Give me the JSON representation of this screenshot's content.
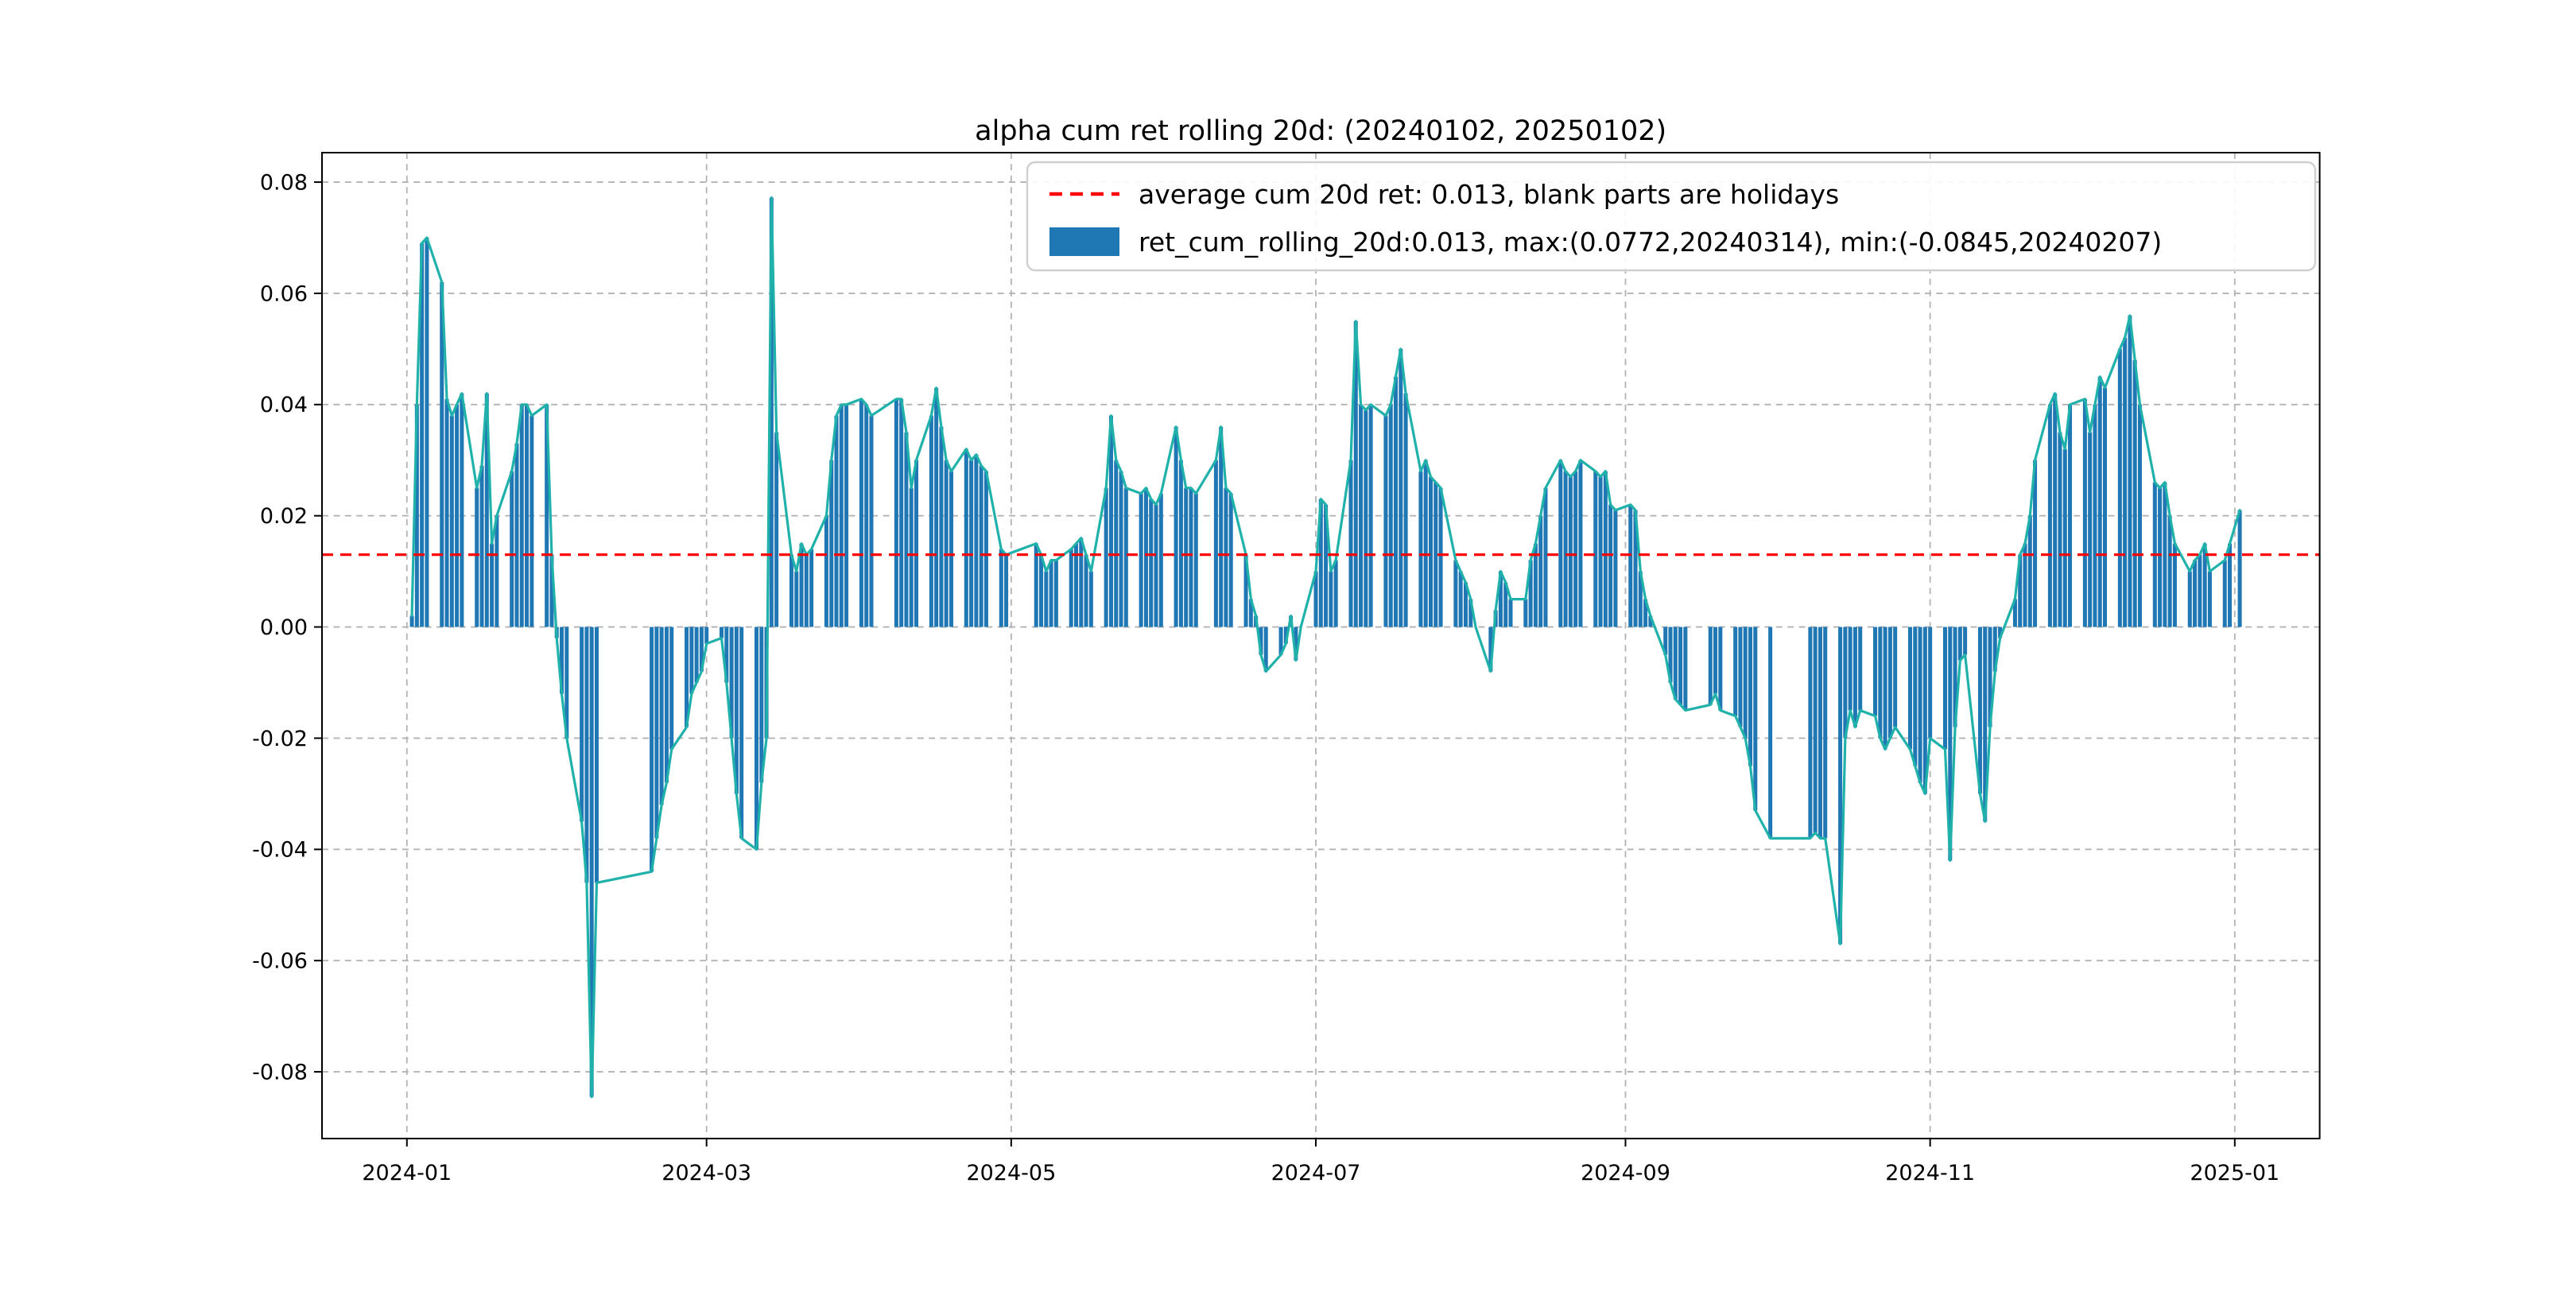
{
  "figure": {
    "background": "#ffffff"
  },
  "chart_data": {
    "type": "bar+line",
    "title": "alpha cum ret rolling 20d: (20240102, 20250102)",
    "average": 0.013,
    "max": {
      "value": 0.0772,
      "date": "20240314"
    },
    "min": {
      "value": -0.0845,
      "date": "20240207"
    },
    "grid": true,
    "legend": {
      "position": "upper right",
      "entries": [
        {
          "type": "dashed-line",
          "color": "#ff0000",
          "label": "average cum 20d ret: 0.013, blank parts are holidays"
        },
        {
          "type": "bar",
          "color": "#1f77b4",
          "label": "ret_cum_rolling_20d:0.013, max:(0.0772,20240314), min:(-0.0845,20240207)"
        }
      ]
    },
    "colors": {
      "bar": "#1f77b4",
      "line": "#20b2aa",
      "average": "#ff0000",
      "grid": "#b3b3b3"
    },
    "ylim": [
      -0.092,
      0.0853
    ],
    "xlim": [
      "2023-12-15",
      "2025-01-18"
    ],
    "yticks": [
      "-0.08",
      "-0.06",
      "-0.04",
      "-0.02",
      "0.00",
      "0.02",
      "0.04",
      "0.06",
      "0.08"
    ],
    "xticks": [
      {
        "date": "2024-01-01",
        "label": "2024-01"
      },
      {
        "date": "2024-03-01",
        "label": "2024-03"
      },
      {
        "date": "2024-05-01",
        "label": "2024-05"
      },
      {
        "date": "2024-07-01",
        "label": "2024-07"
      },
      {
        "date": "2024-09-01",
        "label": "2024-09"
      },
      {
        "date": "2024-11-01",
        "label": "2024-11"
      },
      {
        "date": "2025-01-01",
        "label": "2025-01"
      }
    ],
    "series": [
      {
        "name": "ret_cum_rolling_20d",
        "render": [
          "bar",
          "line"
        ],
        "note": "blank parts are holidays",
        "dates": [
          "2024-01-02",
          "2024-01-03",
          "2024-01-04",
          "2024-01-05",
          "2024-01-08",
          "2024-01-09",
          "2024-01-10",
          "2024-01-11",
          "2024-01-12",
          "2024-01-15",
          "2024-01-16",
          "2024-01-17",
          "2024-01-18",
          "2024-01-19",
          "2024-01-22",
          "2024-01-23",
          "2024-01-24",
          "2024-01-25",
          "2024-01-26",
          "2024-01-29",
          "2024-01-30",
          "2024-01-31",
          "2024-02-01",
          "2024-02-02",
          "2024-02-05",
          "2024-02-06",
          "2024-02-07",
          "2024-02-08",
          "2024-02-19",
          "2024-02-20",
          "2024-02-21",
          "2024-02-22",
          "2024-02-23",
          "2024-02-26",
          "2024-02-27",
          "2024-02-28",
          "2024-02-29",
          "2024-03-01",
          "2024-03-04",
          "2024-03-05",
          "2024-03-06",
          "2024-03-07",
          "2024-03-08",
          "2024-03-11",
          "2024-03-12",
          "2024-03-13",
          "2024-03-14",
          "2024-03-15",
          "2024-03-18",
          "2024-03-19",
          "2024-03-20",
          "2024-03-21",
          "2024-03-22",
          "2024-03-25",
          "2024-03-26",
          "2024-03-27",
          "2024-03-28",
          "2024-03-29",
          "2024-04-01",
          "2024-04-02",
          "2024-04-03",
          "2024-04-08",
          "2024-04-09",
          "2024-04-10",
          "2024-04-11",
          "2024-04-12",
          "2024-04-15",
          "2024-04-16",
          "2024-04-17",
          "2024-04-18",
          "2024-04-19",
          "2024-04-22",
          "2024-04-23",
          "2024-04-24",
          "2024-04-25",
          "2024-04-26",
          "2024-04-29",
          "2024-04-30",
          "2024-05-06",
          "2024-05-07",
          "2024-05-08",
          "2024-05-09",
          "2024-05-10",
          "2024-05-13",
          "2024-05-14",
          "2024-05-15",
          "2024-05-16",
          "2024-05-17",
          "2024-05-20",
          "2024-05-21",
          "2024-05-22",
          "2024-05-23",
          "2024-05-24",
          "2024-05-27",
          "2024-05-28",
          "2024-05-29",
          "2024-05-30",
          "2024-05-31",
          "2024-06-03",
          "2024-06-04",
          "2024-06-05",
          "2024-06-06",
          "2024-06-07",
          "2024-06-11",
          "2024-06-12",
          "2024-06-13",
          "2024-06-14",
          "2024-06-17",
          "2024-06-18",
          "2024-06-19",
          "2024-06-20",
          "2024-06-21",
          "2024-06-24",
          "2024-06-25",
          "2024-06-26",
          "2024-06-27",
          "2024-06-28",
          "2024-07-01",
          "2024-07-02",
          "2024-07-03",
          "2024-07-04",
          "2024-07-05",
          "2024-07-08",
          "2024-07-09",
          "2024-07-10",
          "2024-07-11",
          "2024-07-12",
          "2024-07-15",
          "2024-07-16",
          "2024-07-17",
          "2024-07-18",
          "2024-07-19",
          "2024-07-22",
          "2024-07-23",
          "2024-07-24",
          "2024-07-25",
          "2024-07-26",
          "2024-07-29",
          "2024-07-30",
          "2024-07-31",
          "2024-08-01",
          "2024-08-02",
          "2024-08-05",
          "2024-08-06",
          "2024-08-07",
          "2024-08-08",
          "2024-08-09",
          "2024-08-12",
          "2024-08-13",
          "2024-08-14",
          "2024-08-15",
          "2024-08-16",
          "2024-08-19",
          "2024-08-20",
          "2024-08-21",
          "2024-08-22",
          "2024-08-23",
          "2024-08-26",
          "2024-08-27",
          "2024-08-28",
          "2024-08-29",
          "2024-08-30",
          "2024-09-02",
          "2024-09-03",
          "2024-09-04",
          "2024-09-05",
          "2024-09-06",
          "2024-09-09",
          "2024-09-10",
          "2024-09-11",
          "2024-09-12",
          "2024-09-13",
          "2024-09-18",
          "2024-09-19",
          "2024-09-20",
          "2024-09-23",
          "2024-09-24",
          "2024-09-25",
          "2024-09-26",
          "2024-09-27",
          "2024-09-30",
          "2024-10-08",
          "2024-10-09",
          "2024-10-10",
          "2024-10-11",
          "2024-10-14",
          "2024-10-15",
          "2024-10-16",
          "2024-10-17",
          "2024-10-18",
          "2024-10-21",
          "2024-10-22",
          "2024-10-23",
          "2024-10-24",
          "2024-10-25",
          "2024-10-28",
          "2024-10-29",
          "2024-10-30",
          "2024-10-31",
          "2024-11-01",
          "2024-11-04",
          "2024-11-05",
          "2024-11-06",
          "2024-11-07",
          "2024-11-08",
          "2024-11-11",
          "2024-11-12",
          "2024-11-13",
          "2024-11-14",
          "2024-11-15",
          "2024-11-18",
          "2024-11-19",
          "2024-11-20",
          "2024-11-21",
          "2024-11-22",
          "2024-11-25",
          "2024-11-26",
          "2024-11-27",
          "2024-11-28",
          "2024-11-29",
          "2024-12-02",
          "2024-12-03",
          "2024-12-04",
          "2024-12-05",
          "2024-12-06",
          "2024-12-09",
          "2024-12-10",
          "2024-12-11",
          "2024-12-12",
          "2024-12-13",
          "2024-12-16",
          "2024-12-17",
          "2024-12-18",
          "2024-12-19",
          "2024-12-20",
          "2024-12-23",
          "2024-12-24",
          "2024-12-25",
          "2024-12-26",
          "2024-12-27",
          "2024-12-30",
          "2024-12-31",
          "2025-01-02"
        ],
        "values": [
          0.002,
          0.04,
          0.069,
          0.07,
          0.062,
          0.041,
          0.038,
          0.04,
          0.042,
          0.025,
          0.029,
          0.042,
          0.015,
          0.02,
          0.028,
          0.033,
          0.04,
          0.04,
          0.038,
          0.04,
          0.013,
          -0.002,
          -0.012,
          -0.02,
          -0.035,
          -0.046,
          -0.0845,
          -0.046,
          -0.044,
          -0.038,
          -0.032,
          -0.028,
          -0.022,
          -0.018,
          -0.012,
          -0.01,
          -0.008,
          -0.003,
          -0.002,
          -0.01,
          -0.02,
          -0.03,
          -0.038,
          -0.04,
          -0.028,
          -0.02,
          0.0772,
          0.035,
          0.013,
          0.01,
          0.015,
          0.013,
          0.014,
          0.02,
          0.03,
          0.038,
          0.04,
          0.04,
          0.041,
          0.04,
          0.038,
          0.041,
          0.041,
          0.035,
          0.025,
          0.03,
          0.038,
          0.043,
          0.036,
          0.03,
          0.028,
          0.032,
          0.03,
          0.031,
          0.029,
          0.028,
          0.014,
          0.013,
          0.015,
          0.013,
          0.01,
          0.012,
          0.012,
          0.014,
          0.015,
          0.016,
          0.013,
          0.01,
          0.025,
          0.038,
          0.03,
          0.028,
          0.025,
          0.024,
          0.025,
          0.023,
          0.022,
          0.024,
          0.036,
          0.03,
          0.025,
          0.025,
          0.024,
          0.03,
          0.036,
          0.025,
          0.024,
          0.013,
          0.005,
          0.002,
          -0.005,
          -0.008,
          -0.005,
          -0.003,
          0.002,
          -0.006,
          0.0,
          0.01,
          0.023,
          0.022,
          0.01,
          0.012,
          0.03,
          0.055,
          0.04,
          0.039,
          0.04,
          0.038,
          0.04,
          0.045,
          0.05,
          0.042,
          0.028,
          0.03,
          0.027,
          0.026,
          0.025,
          0.012,
          0.01,
          0.008,
          0.005,
          0.0,
          -0.008,
          0.003,
          0.01,
          0.008,
          0.005,
          0.005,
          0.012,
          0.015,
          0.02,
          0.025,
          0.03,
          0.028,
          0.027,
          0.028,
          0.03,
          0.028,
          0.027,
          0.028,
          0.022,
          0.021,
          0.022,
          0.021,
          0.01,
          0.005,
          0.002,
          -0.005,
          -0.01,
          -0.013,
          -0.014,
          -0.015,
          -0.014,
          -0.012,
          -0.015,
          -0.016,
          -0.018,
          -0.02,
          -0.025,
          -0.033,
          -0.038,
          -0.038,
          -0.037,
          -0.038,
          -0.038,
          -0.057,
          -0.02,
          -0.015,
          -0.018,
          -0.015,
          -0.016,
          -0.02,
          -0.022,
          -0.02,
          -0.018,
          -0.022,
          -0.025,
          -0.028,
          -0.03,
          -0.02,
          -0.022,
          -0.042,
          -0.018,
          -0.006,
          -0.005,
          -0.03,
          -0.035,
          -0.018,
          -0.008,
          -0.002,
          0.005,
          0.013,
          0.015,
          0.02,
          0.03,
          0.04,
          0.042,
          0.035,
          0.032,
          0.04,
          0.041,
          0.035,
          0.04,
          0.045,
          0.043,
          0.05,
          0.052,
          0.056,
          0.048,
          0.04,
          0.026,
          0.025,
          0.026,
          0.02,
          0.015,
          0.01,
          0.012,
          0.013,
          0.015,
          0.01,
          0.012,
          0.015,
          0.021
        ]
      }
    ]
  }
}
